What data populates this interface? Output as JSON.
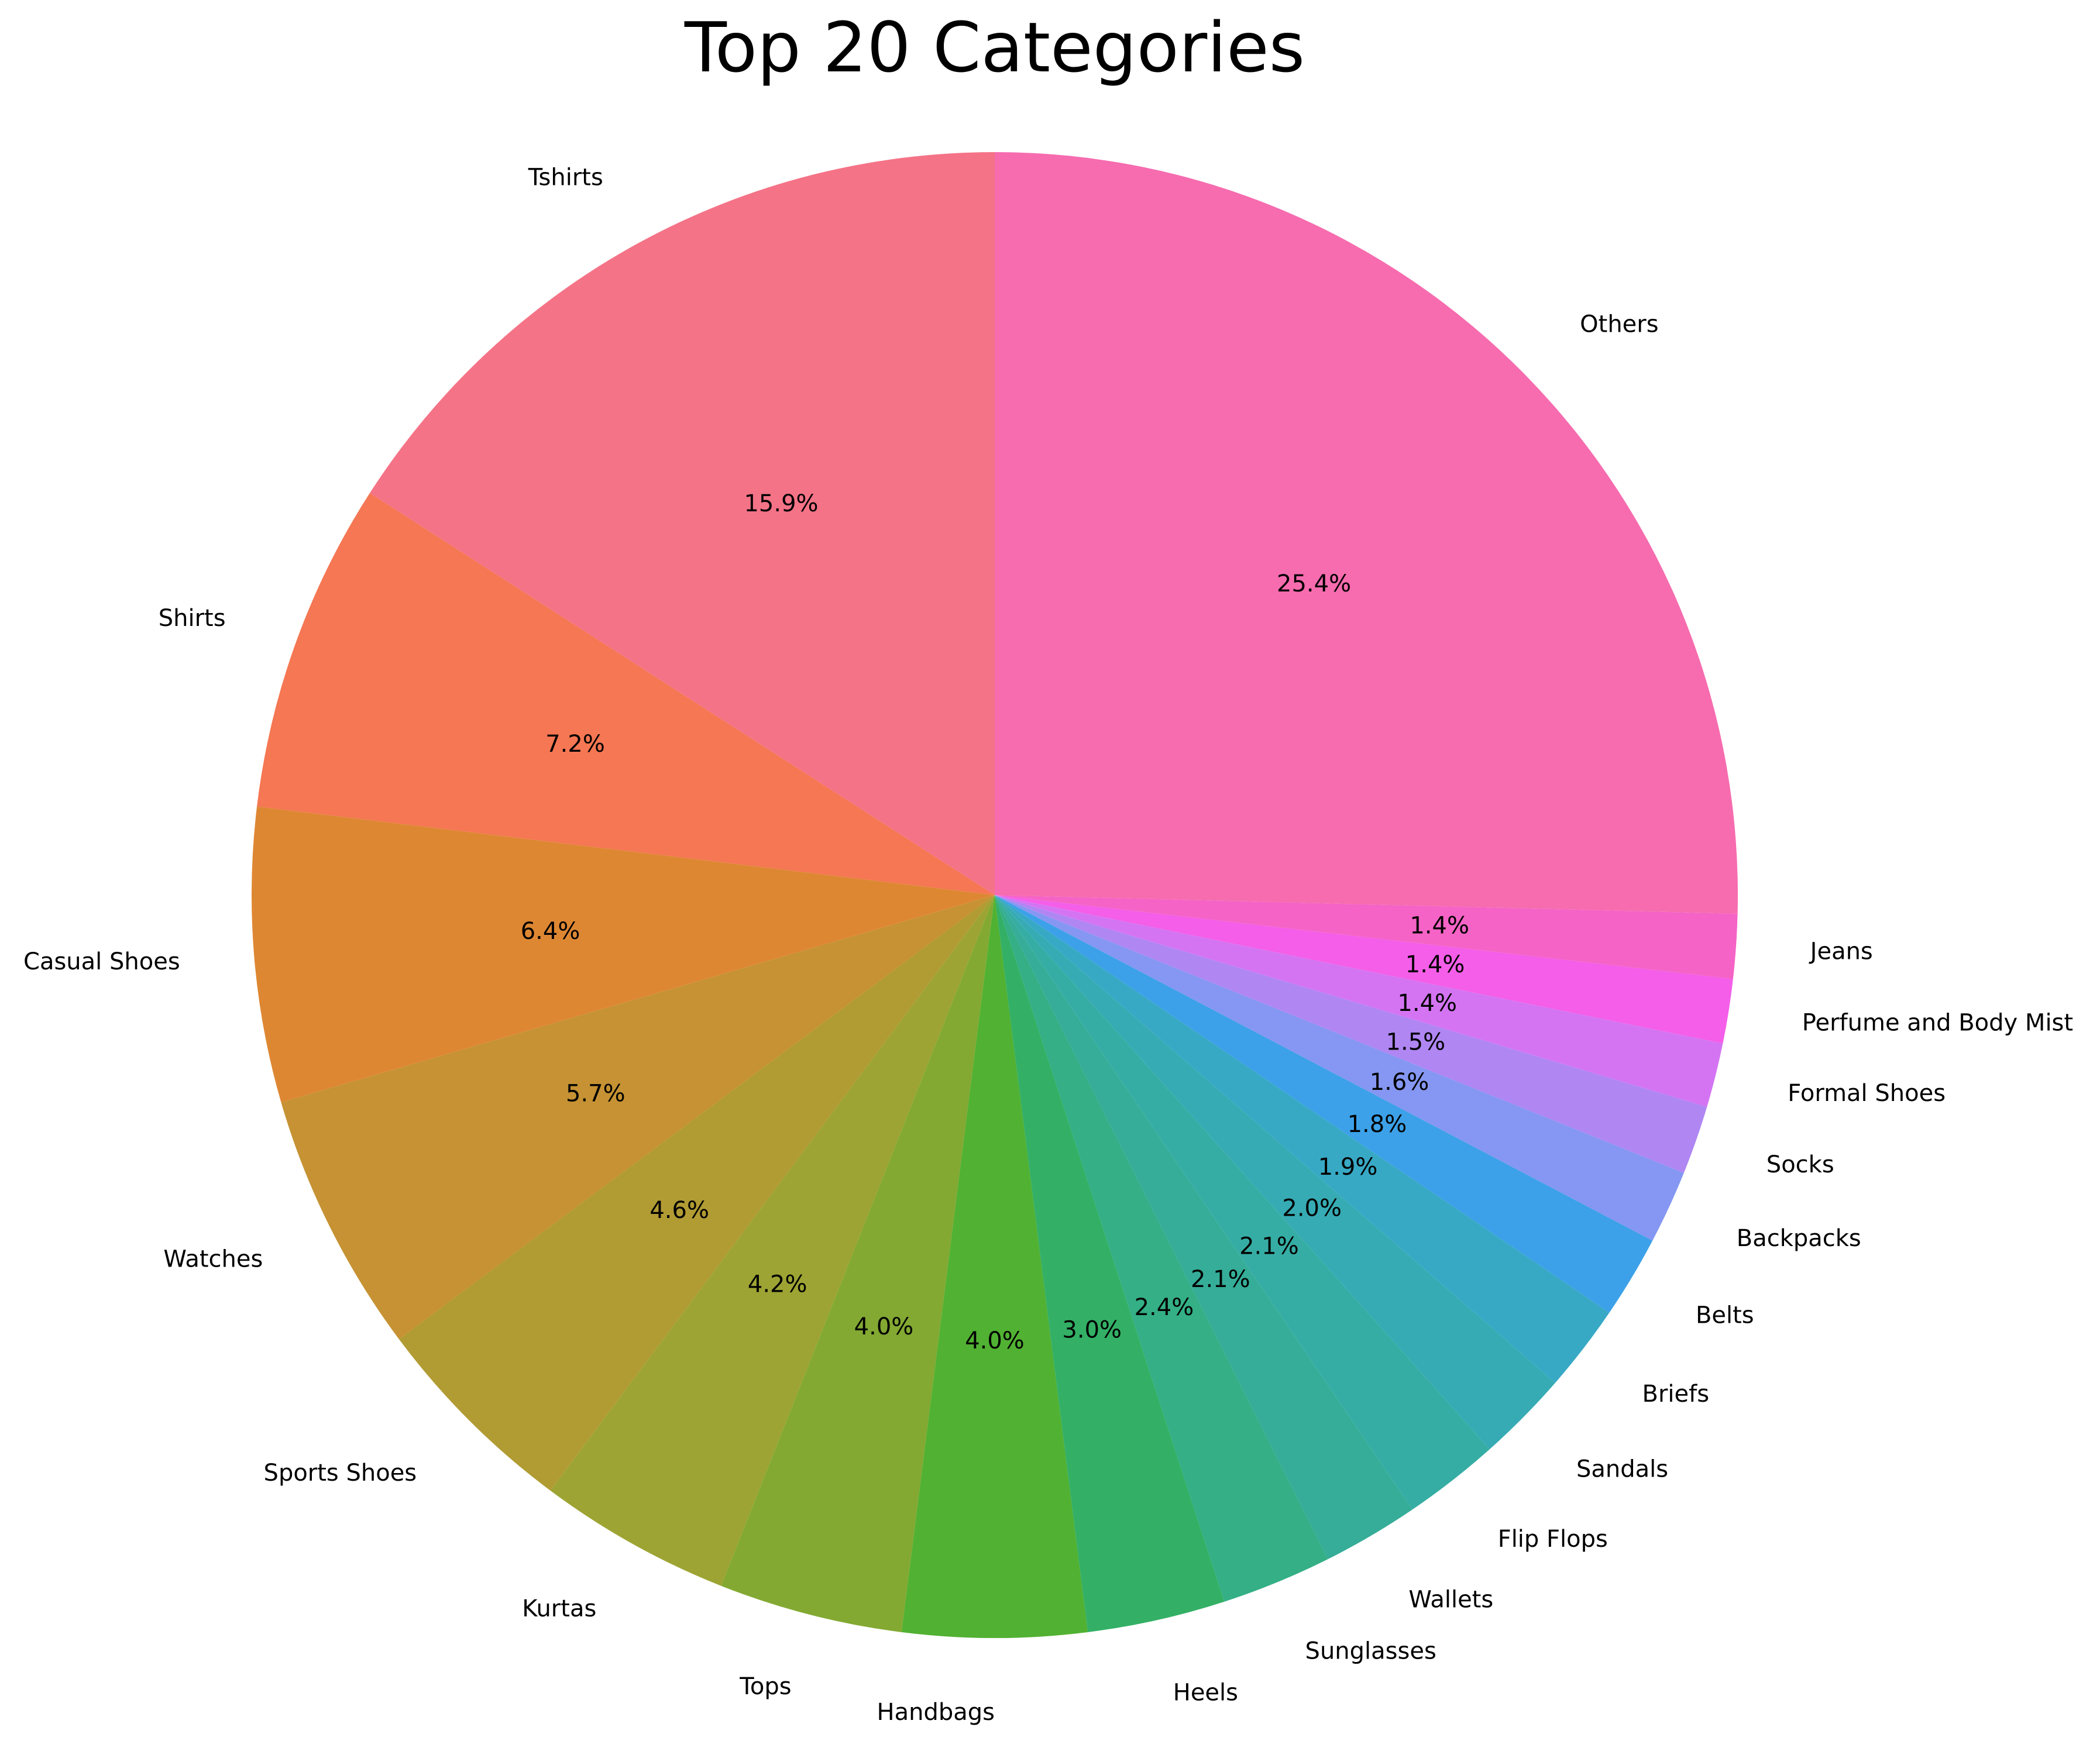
{
  "chart_data": {
    "type": "pie",
    "title": "Top 20 Categories",
    "start_angle_deg": 90,
    "direction": "counterclockwise",
    "slices": [
      {
        "label": "Tshirts",
        "percent": 15.9,
        "pct_text": "15.9%",
        "color": "#f57387"
      },
      {
        "label": "Shirts",
        "percent": 7.2,
        "pct_text": "7.2%",
        "color": "#f57753"
      },
      {
        "label": "Casual Shoes",
        "percent": 6.4,
        "pct_text": "6.4%",
        "color": "#de8733"
      },
      {
        "label": "Watches",
        "percent": 5.7,
        "pct_text": "5.7%",
        "color": "#c69233"
      },
      {
        "label": "Sports Shoes",
        "percent": 4.6,
        "pct_text": "4.6%",
        "color": "#b19b33"
      },
      {
        "label": "Kurtas",
        "percent": 4.2,
        "pct_text": "4.2%",
        "color": "#9da433"
      },
      {
        "label": "Tops",
        "percent": 4.0,
        "pct_text": "4.0%",
        "color": "#83a932"
      },
      {
        "label": "Handbags",
        "percent": 4.0,
        "pct_text": "4.0%",
        "color": "#51b132"
      },
      {
        "label": "Heels",
        "percent": 3.0,
        "pct_text": "3.0%",
        "color": "#33b065"
      },
      {
        "label": "Sunglasses",
        "percent": 2.4,
        "pct_text": "2.4%",
        "color": "#34af86"
      },
      {
        "label": "Wallets",
        "percent": 2.1,
        "pct_text": "2.1%",
        "color": "#35ad98"
      },
      {
        "label": "Flip Flops",
        "percent": 2.1,
        "pct_text": "2.1%",
        "color": "#36ada4"
      },
      {
        "label": "Sandals",
        "percent": 2.0,
        "pct_text": "2.0%",
        "color": "#37abb4"
      },
      {
        "label": "Briefs",
        "percent": 1.9,
        "pct_text": "1.9%",
        "color": "#38a9c5"
      },
      {
        "label": "Belts",
        "percent": 1.8,
        "pct_text": "1.8%",
        "color": "#3ca1e8"
      },
      {
        "label": "Backpacks",
        "percent": 1.6,
        "pct_text": "1.6%",
        "color": "#8597f2"
      },
      {
        "label": "Socks",
        "percent": 1.5,
        "pct_text": "1.5%",
        "color": "#b086f3"
      },
      {
        "label": "Formal Shoes",
        "percent": 1.4,
        "pct_text": "1.4%",
        "color": "#d474f3"
      },
      {
        "label": "Perfume and Body Mist",
        "percent": 1.4,
        "pct_text": "1.4%",
        "color": "#f45ee8"
      },
      {
        "label": "Jeans",
        "percent": 1.4,
        "pct_text": "1.4%",
        "color": "#f563c6"
      },
      {
        "label": "Others",
        "percent": 25.4,
        "pct_text": "25.4%",
        "color": "#f66caf"
      }
    ]
  }
}
